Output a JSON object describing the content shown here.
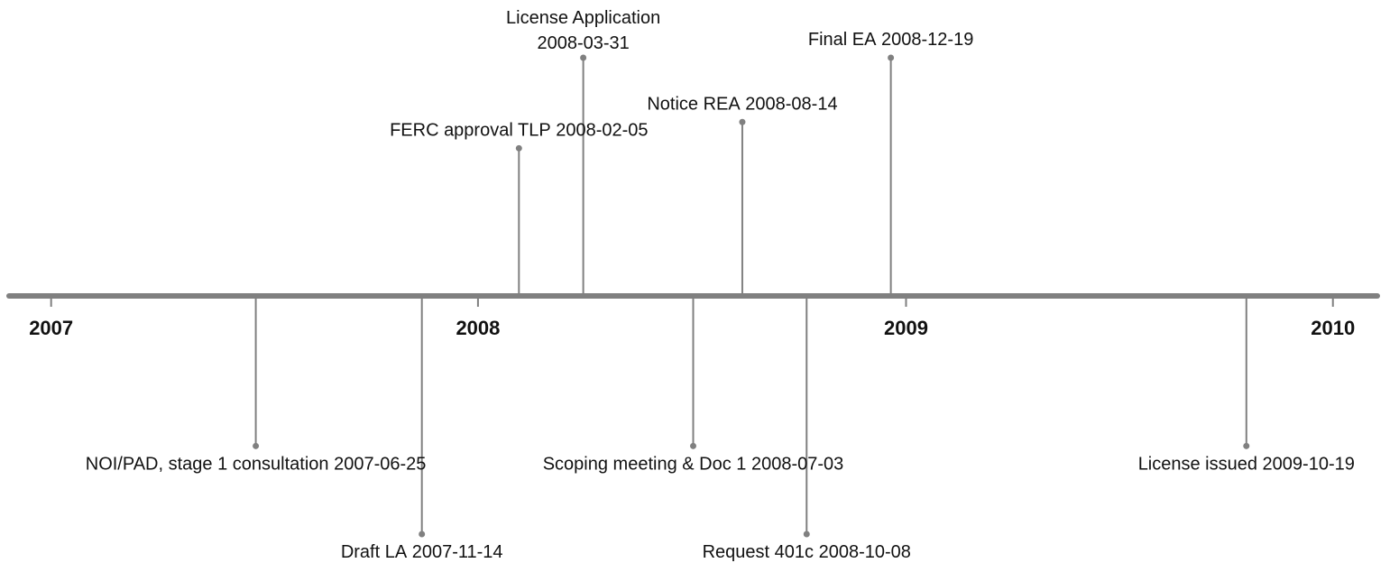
{
  "chart_data": {
    "type": "timeline",
    "categories": [
      "NOI/PAD, stage 1 consultation",
      "Draft LA",
      "FERC approval TLP",
      "License Application",
      "Scoping meeting & Doc 1",
      "Notice REA",
      "Request 401c",
      "Final EA",
      "License issued"
    ],
    "x": [
      "2007-06-25",
      "2007-11-14",
      "2008-02-05",
      "2008-03-31",
      "2008-07-03",
      "2008-08-14",
      "2008-10-08",
      "2008-12-19",
      "2009-10-19"
    ],
    "values": [
      -0.63,
      -1,
      0.62,
      1,
      -0.63,
      0.73,
      -1,
      1,
      -0.63
    ],
    "xlim": [
      "2006-11-26",
      "2010-02-08"
    ],
    "xticks": [
      "2007",
      "2008",
      "2009",
      "2010"
    ],
    "ylim": [
      -1,
      1
    ],
    "color": "#808080"
  }
}
